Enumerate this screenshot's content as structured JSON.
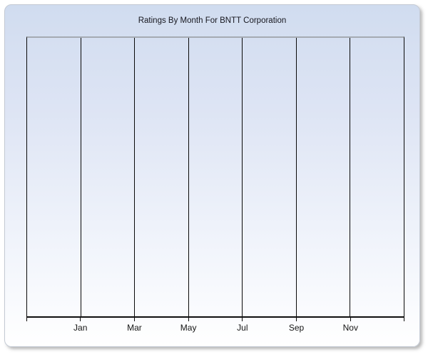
{
  "chart_data": {
    "type": "line",
    "title": "Ratings By Month For BNTT Corporation",
    "categories": [
      "Jan",
      "Mar",
      "May",
      "Jul",
      "Sep",
      "Nov"
    ],
    "series": [],
    "xlabel": "",
    "ylabel": "",
    "x_axis": {
      "tick_labels": [
        "Jan",
        "Mar",
        "May",
        "Jul",
        "Sep",
        "Nov"
      ],
      "gridline_count": 8
    },
    "y_axis": {
      "tick_labels": []
    },
    "legend_position": "none",
    "grid": "vertical-only",
    "plot_area_empty": true
  },
  "colors": {
    "page_background": "#ffffff",
    "panel_gradient_top": "#d0dcef",
    "panel_gradient_bottom": "#ffffff",
    "panel_border": "#c4cad4",
    "plot_top_border": "#a5aab2",
    "gridline": "#0a0a0a",
    "axis_line": "#0f0f0f",
    "title_text": "#16161e",
    "label_text": "#141414",
    "shadow": "#737373"
  }
}
